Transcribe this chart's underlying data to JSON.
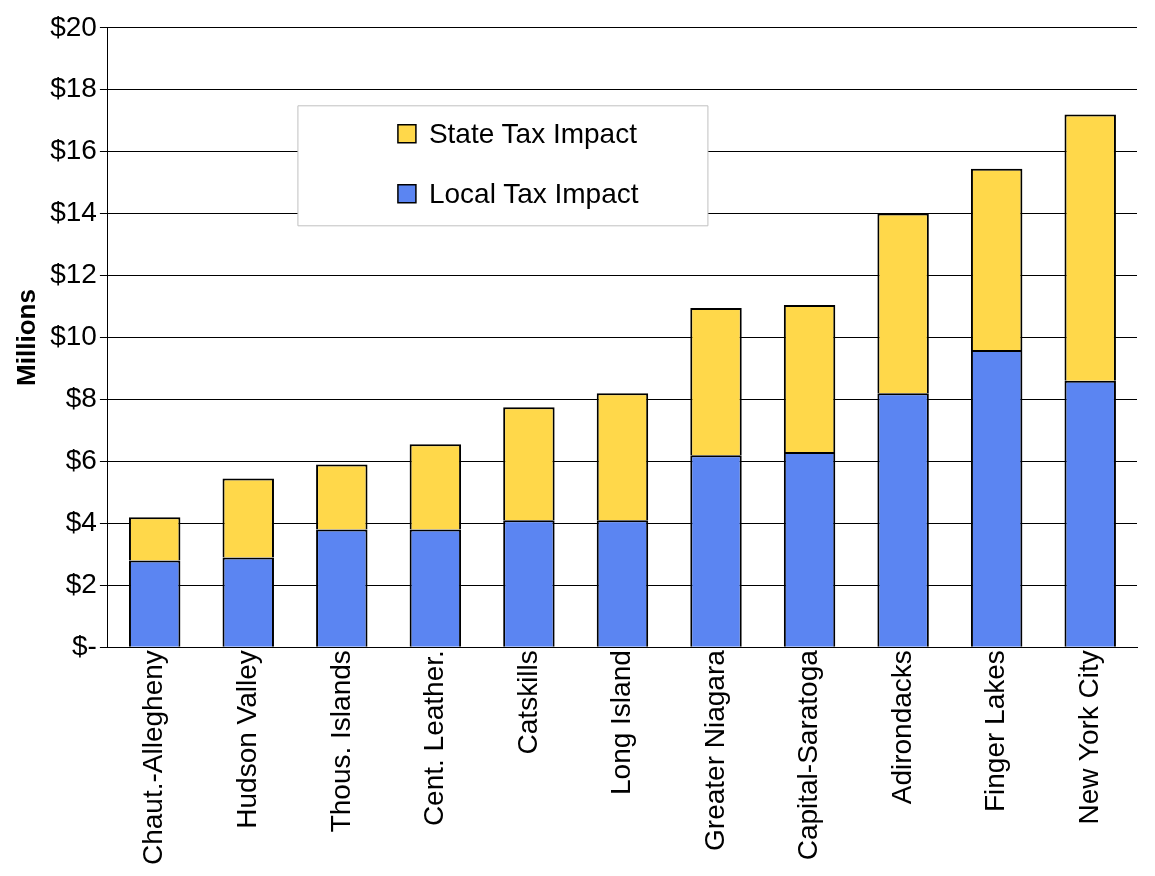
{
  "chart_data": {
    "type": "bar",
    "stacked": true,
    "ylabel": "Millions",
    "categories": [
      "Chaut.-Allegheny",
      "Hudson Valley",
      "Thous. Islands",
      "Cent. Leather.",
      "Catskills",
      "Long Island",
      "Greater Niagara",
      "Capital-Saratoga",
      "Adirondacks",
      "Finger Lakes",
      "New York City"
    ],
    "series": [
      {
        "name": "Local Tax Impact",
        "color": "#5b85f2",
        "values": [
          2.8,
          2.9,
          3.8,
          3.8,
          4.1,
          4.1,
          6.2,
          6.3,
          8.2,
          9.6,
          8.6
        ]
      },
      {
        "name": "State Tax Impact",
        "color": "#ffd84a",
        "values": [
          1.4,
          2.55,
          2.1,
          2.75,
          3.65,
          4.1,
          4.75,
          4.75,
          5.8,
          5.85,
          8.6
        ]
      }
    ],
    "ylim": [
      0,
      20
    ],
    "yticks": [
      {
        "value": 0,
        "label": "$-"
      },
      {
        "value": 2,
        "label": "$2"
      },
      {
        "value": 4,
        "label": "$4"
      },
      {
        "value": 6,
        "label": "$6"
      },
      {
        "value": 8,
        "label": "$8"
      },
      {
        "value": 10,
        "label": "$10"
      },
      {
        "value": 12,
        "label": "$12"
      },
      {
        "value": 14,
        "label": "$14"
      },
      {
        "value": 16,
        "label": "$16"
      },
      {
        "value": 18,
        "label": "$18"
      },
      {
        "value": 20,
        "label": "$20"
      }
    ],
    "grid": "y",
    "legend": "top left"
  }
}
